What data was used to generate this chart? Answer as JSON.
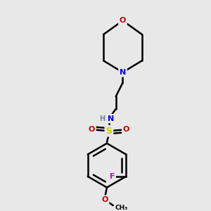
{
  "bg_color": "#e8e8e8",
  "atom_colors": {
    "C": "#000000",
    "H": "#708090",
    "N": "#0000ff",
    "O": "#cc0000",
    "S": "#cccc00",
    "F": "#cc00cc"
  },
  "bond_color": "#000000",
  "bond_width": 1.8,
  "fig_width": 3.0,
  "fig_height": 3.0,
  "dpi": 100
}
